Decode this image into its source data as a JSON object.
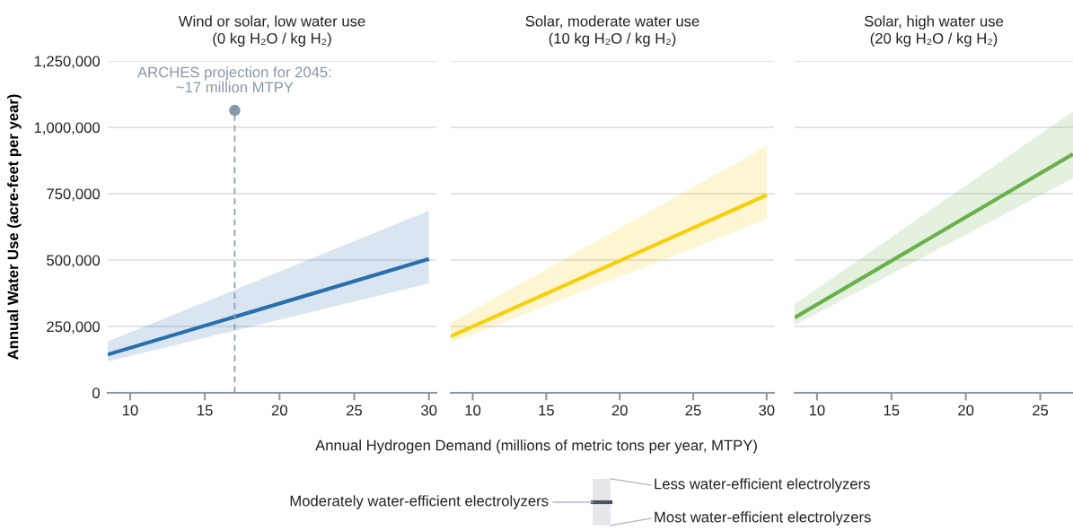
{
  "chart_data": [
    {
      "type": "line",
      "title": "Wind or solar, low water use\n(0 kg H₂O / kg H₂)",
      "ylabel": "Annual Water Use (acre-feet per year)",
      "series": [
        {
          "color": "#2a6fad",
          "x": [
            8.5,
            30
          ],
          "values": [
            144000,
            504000
          ],
          "lower": [
            118000,
            412000
          ],
          "upper": [
            193000,
            686000
          ]
        }
      ],
      "xlim": [
        8.5,
        30.5
      ],
      "xticks": [
        10,
        15,
        20,
        25,
        30
      ],
      "ylim": [
        0,
        1250000
      ],
      "yticks": [
        0,
        {
          "value": 250000,
          "label": "250,000"
        },
        {
          "value": 500000,
          "label": "500,000"
        },
        {
          "value": 750000,
          "label": "750,000"
        },
        {
          "value": 1000000,
          "label": "1,000,000"
        },
        {
          "value": 1250000,
          "label": "1,250,000"
        }
      ],
      "grid": "y",
      "ref_lines": [
        {
          "axis": "x",
          "value": 17,
          "color": "#8797a8",
          "line_style": "dashed"
        }
      ],
      "annotations": [
        {
          "text": "ARCHES projection for 2045:\n~17 million MTPY",
          "x": 17,
          "y": 1064000
        }
      ]
    },
    {
      "type": "line",
      "title": "Solar, moderate water use\n(10 kg H₂O / kg H₂)",
      "xlabel": "Annual Hydrogen Demand (millions of metric tons per year, MTPY)",
      "series": [
        {
          "color": "#f7cf0a",
          "x": [
            8.5,
            30
          ],
          "values": [
            213000,
            745000
          ],
          "lower": [
            188000,
            654000
          ],
          "upper": [
            264000,
            930000
          ]
        }
      ],
      "xlim": [
        8.5,
        30.5
      ],
      "xticks": [
        10,
        15,
        20,
        25,
        30
      ],
      "ylim": [
        0,
        1250000
      ],
      "yticks": [
        0,
        250000,
        500000,
        750000,
        1000000,
        1250000
      ],
      "grid": "y",
      "tick_labels": "x",
      "annotations": [
        "Moderately water-efficient electrolyzers",
        "Less water-efficient electrolyzers",
        "Most water-efficient electrolyzers"
      ]
    },
    {
      "type": "line",
      "title": "Solar, high water use\n(20 kg H₂O / kg H₂)",
      "series": [
        {
          "color": "#6ab04c",
          "x": [
            8.5,
            27.2
          ],
          "values": [
            283000,
            899000
          ],
          "lower": [
            255000,
            809000
          ],
          "upper": [
            334000,
            1060000
          ]
        }
      ],
      "xlim": [
        8.5,
        27.2
      ],
      "xticks": [
        10,
        15,
        20,
        25
      ],
      "ylim": [
        0,
        1250000
      ],
      "yticks": [
        0,
        250000,
        500000,
        750000,
        1000000,
        1250000
      ],
      "grid": "y",
      "tick_labels": "x"
    }
  ]
}
